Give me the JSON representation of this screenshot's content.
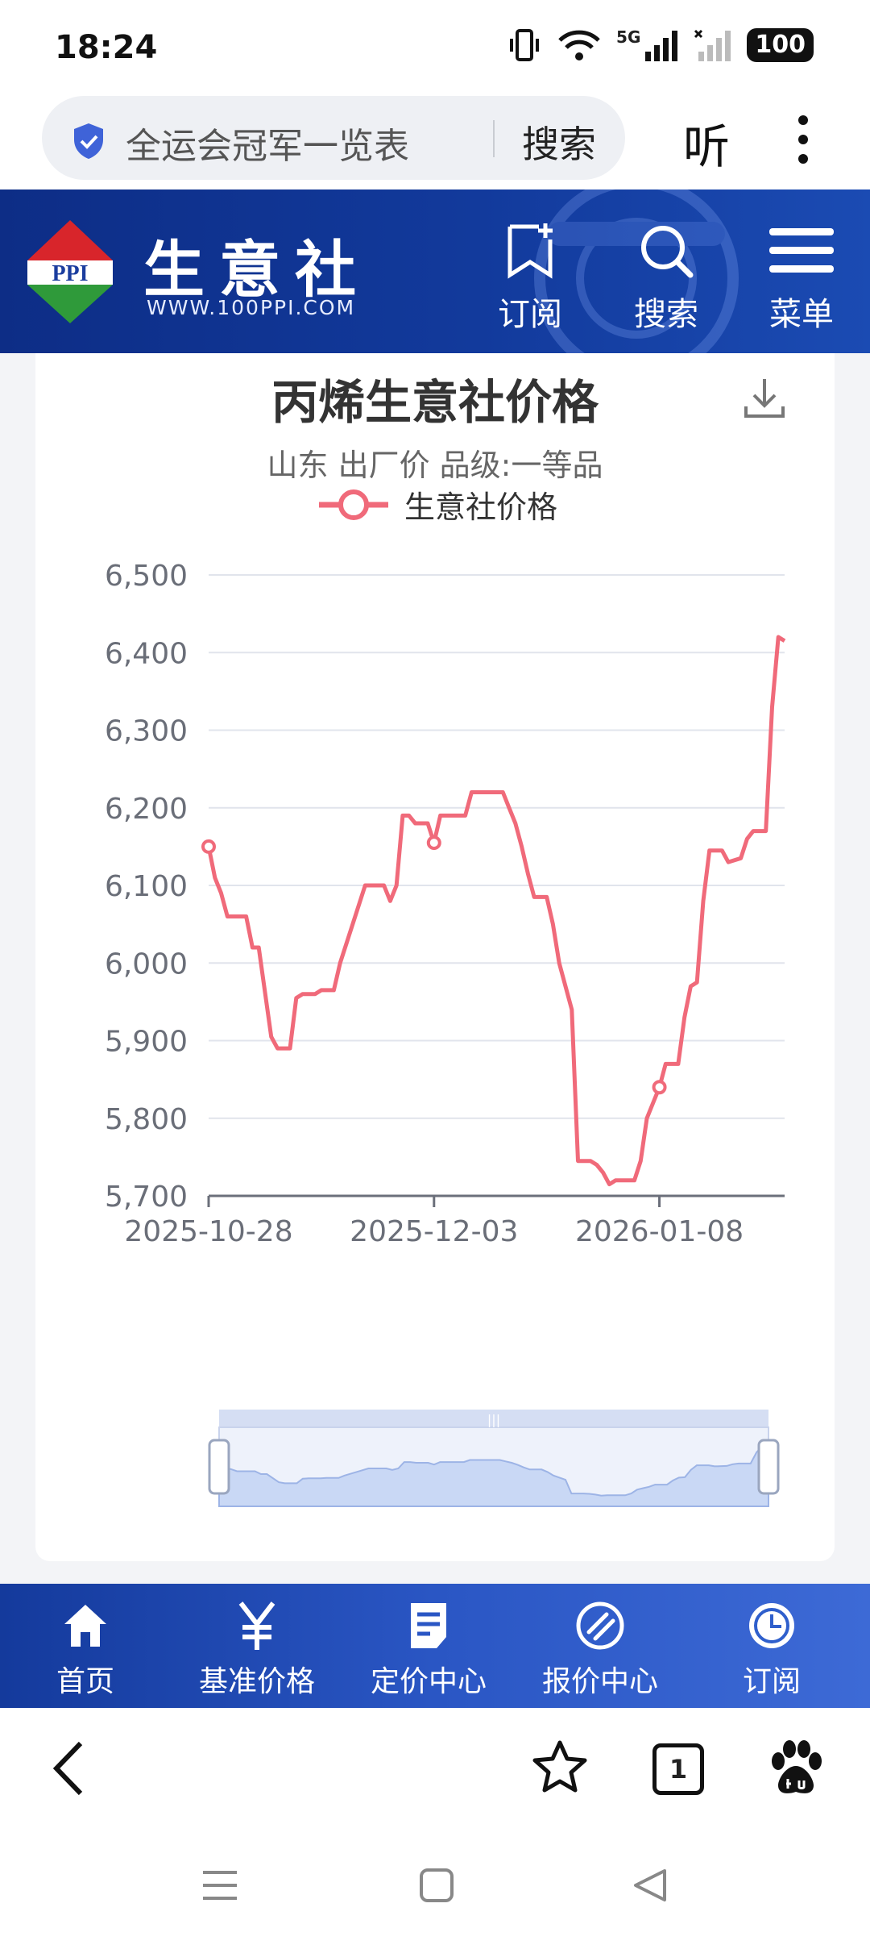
{
  "status_bar": {
    "time": "18:24",
    "network": "5G",
    "battery": "100"
  },
  "browser": {
    "address_text": "全运会冠军一览表",
    "search_label": "搜索",
    "listen_label": "听"
  },
  "site_header": {
    "logo_text": "PPI",
    "brand_name": "生意社",
    "brand_url": "WWW.100PPI.COM",
    "buttons": [
      {
        "label": "订阅",
        "icon": "bookmark-plus-icon"
      },
      {
        "label": "搜索",
        "icon": "search-icon"
      },
      {
        "label": "菜单",
        "icon": "menu-icon"
      }
    ]
  },
  "chart_data": {
    "type": "line",
    "title": "丙烯生意社价格",
    "subtitle": "山东 出厂价 品级:一等品",
    "legend": [
      "生意社价格"
    ],
    "legend_position": "top-center",
    "series": [
      {
        "name": "生意社价格",
        "color": "#f06a7a",
        "points": [
          [
            "2025-10-28",
            6150
          ],
          [
            "2025-10-29",
            6110
          ],
          [
            "2025-10-30",
            6090
          ],
          [
            "2025-10-31",
            6060
          ],
          [
            "2025-11-03",
            6060
          ],
          [
            "2025-11-04",
            6020
          ],
          [
            "2025-11-05",
            6020
          ],
          [
            "2025-11-07",
            5905
          ],
          [
            "2025-11-08",
            5890
          ],
          [
            "2025-11-10",
            5890
          ],
          [
            "2025-11-11",
            5955
          ],
          [
            "2025-11-12",
            5960
          ],
          [
            "2025-11-14",
            5960
          ],
          [
            "2025-11-15",
            5965
          ],
          [
            "2025-11-17",
            5965
          ],
          [
            "2025-11-18",
            6000
          ],
          [
            "2025-11-20",
            6050
          ],
          [
            "2025-11-22",
            6100
          ],
          [
            "2025-11-25",
            6100
          ],
          [
            "2025-11-26",
            6080
          ],
          [
            "2025-11-27",
            6100
          ],
          [
            "2025-11-28",
            6190
          ],
          [
            "2025-11-29",
            6190
          ],
          [
            "2025-11-30",
            6180
          ],
          [
            "2025-12-02",
            6180
          ],
          [
            "2025-12-03",
            6155
          ],
          [
            "2025-12-04",
            6190
          ],
          [
            "2025-12-05",
            6190
          ],
          [
            "2025-12-08",
            6190
          ],
          [
            "2025-12-09",
            6220
          ],
          [
            "2025-12-11",
            6220
          ],
          [
            "2025-12-14",
            6220
          ],
          [
            "2025-12-15",
            6200
          ],
          [
            "2025-12-16",
            6180
          ],
          [
            "2025-12-17",
            6150
          ],
          [
            "2025-12-18",
            6115
          ],
          [
            "2025-12-19",
            6085
          ],
          [
            "2025-12-21",
            6085
          ],
          [
            "2025-12-22",
            6050
          ],
          [
            "2025-12-23",
            6000
          ],
          [
            "2025-12-25",
            5940
          ],
          [
            "2025-12-26",
            5745
          ],
          [
            "2025-12-28",
            5745
          ],
          [
            "2025-12-29",
            5740
          ],
          [
            "2025-12-30",
            5730
          ],
          [
            "2025-12-31",
            5715
          ],
          [
            "2026-01-01",
            5720
          ],
          [
            "2026-01-04",
            5720
          ],
          [
            "2026-01-05",
            5745
          ],
          [
            "2026-01-06",
            5800
          ],
          [
            "2026-01-07",
            5820
          ],
          [
            "2026-01-08",
            5840
          ],
          [
            "2026-01-09",
            5870
          ],
          [
            "2026-01-11",
            5870
          ],
          [
            "2026-01-12",
            5930
          ],
          [
            "2026-01-13",
            5970
          ],
          [
            "2026-01-14",
            5975
          ],
          [
            "2026-01-15",
            6080
          ],
          [
            "2026-01-16",
            6145
          ],
          [
            "2026-01-18",
            6145
          ],
          [
            "2026-01-19",
            6130
          ],
          [
            "2026-01-21",
            6135
          ],
          [
            "2026-01-22",
            6160
          ],
          [
            "2026-01-23",
            6170
          ],
          [
            "2026-01-25",
            6170
          ],
          [
            "2026-01-26",
            6330
          ],
          [
            "2026-01-27",
            6420
          ],
          [
            "2026-01-28",
            6415
          ]
        ],
        "marked_points": [
          "2025-10-28",
          "2025-12-03",
          "2026-01-08"
        ]
      }
    ],
    "x_ticks": [
      "2025-10-28",
      "2025-12-03",
      "2026-01-08"
    ],
    "y_ticks": [
      "6,500",
      "6,400",
      "6,300",
      "6,200",
      "6,100",
      "6,000",
      "5,900",
      "5,800",
      "5,700"
    ],
    "ylim": [
      5700,
      6500
    ],
    "xlim": [
      "2025-10-28",
      "2026-01-28"
    ],
    "grid": true
  },
  "bottom_nav": [
    {
      "label": "首页",
      "icon": "home-icon"
    },
    {
      "label": "基准价格",
      "icon": "yen-icon"
    },
    {
      "label": "定价中心",
      "icon": "document-icon"
    },
    {
      "label": "报价中心",
      "icon": "quote-icon"
    },
    {
      "label": "订阅",
      "icon": "clock-icon"
    }
  ],
  "toolbar": {
    "tab_count": "1"
  }
}
